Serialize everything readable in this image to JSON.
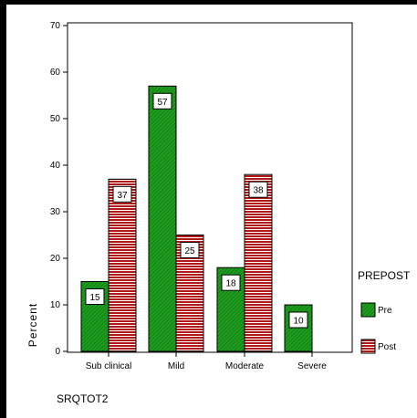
{
  "chart_data": {
    "type": "bar",
    "categories": [
      "Sub clinical",
      "Mild",
      "Moderate",
      "Severe"
    ],
    "series": [
      {
        "name": "Pre",
        "values": [
          15,
          57,
          18,
          10
        ],
        "labels": [
          "15",
          "57",
          "18",
          "10"
        ]
      },
      {
        "name": "Post",
        "values": [
          37,
          25,
          38,
          null
        ],
        "labels": [
          "37",
          "25",
          "38",
          null
        ]
      }
    ],
    "xlabel": "SRQTOT2",
    "ylabel": "Percent",
    "ylim": [
      0,
      70
    ],
    "yticks": [
      "0",
      "10",
      "20",
      "30",
      "40",
      "50",
      "60",
      "70"
    ],
    "legend_title": "PREPOST",
    "legend_position": "right",
    "grid": false,
    "colors": {
      "Pre": "#1e9e1e",
      "Post": "#b31818",
      "Pre_hatch": "#0c5e0c",
      "Post_hatch": "#ffffff"
    }
  }
}
